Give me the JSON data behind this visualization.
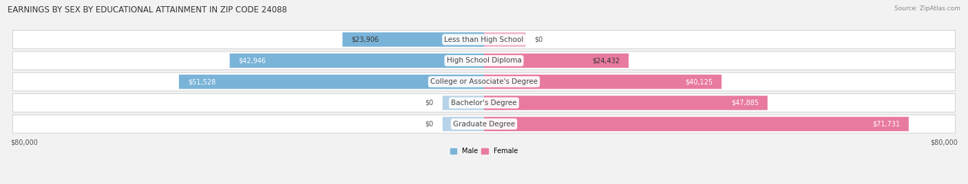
{
  "title": "EARNINGS BY SEX BY EDUCATIONAL ATTAINMENT IN ZIP CODE 24088",
  "source": "Source: ZipAtlas.com",
  "background_color": "#f2f2f2",
  "categories": [
    "Less than High School",
    "High School Diploma",
    "College or Associate's Degree",
    "Bachelor's Degree",
    "Graduate Degree"
  ],
  "male_values": [
    23906,
    42946,
    51528,
    0,
    0
  ],
  "female_values": [
    0,
    24432,
    40125,
    47885,
    71731
  ],
  "male_color": "#7ab3d8",
  "female_color": "#e87aa0",
  "male_color_light": "#b8d3e8",
  "female_color_light": "#f0b0c8",
  "max_value": 80000,
  "x_left_label": "$80,000",
  "x_right_label": "$80,000",
  "title_fontsize": 8.5,
  "source_fontsize": 6.5,
  "label_fontsize": 7,
  "cat_fontsize": 7.5,
  "value_fontsize": 7
}
